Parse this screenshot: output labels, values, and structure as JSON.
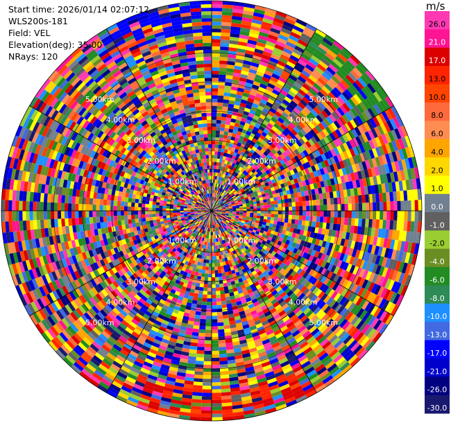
{
  "header": {
    "start_time": "Start time: 2026/01/14 02:07:12",
    "instrument": "WLS200s-181",
    "field": "Field: VEL",
    "elevation": "Elevation(deg): 35.00",
    "nrays": "NRays: 120"
  },
  "colorbar": {
    "unit": "m/s",
    "labels": [
      "26.0",
      "21.0",
      "17.0",
      "13.0",
      "10.0",
      "8.0",
      "6.0",
      "4.0",
      "2.0",
      "1.0",
      "0.0",
      "-1.0",
      "-2.0",
      "-4.0",
      "-6.0",
      "-8.0",
      "-10.0",
      "-13.0",
      "-17.0",
      "-21.0",
      "-26.0",
      "-30.0"
    ],
    "colors": [
      "#ff39b4",
      "#ff1493",
      "#dc0000",
      "#ff2400",
      "#ff4500",
      "#ff6a3c",
      "#ff8c50",
      "#ffa500",
      "#ffd700",
      "#ffff00",
      "#708090",
      "#606060",
      "#9acd32",
      "#6b8e23",
      "#228b22",
      "#2e8b57",
      "#1e90ff",
      "#4169e1",
      "#0000ff",
      "#0000cd",
      "#000080",
      "#191970"
    ]
  },
  "chart_data": {
    "type": "heatmap",
    "projection": "polar-ppi",
    "field": "VEL",
    "units": "m/s",
    "nrays": 120,
    "range_rings_km": [
      "1.00km",
      "2.00km",
      "3.00km",
      "4.00km",
      "5.00km"
    ],
    "max_range_km": 6.0,
    "colormap_levels": [
      -30,
      -26,
      -21,
      -17,
      -13,
      -10,
      -8,
      -6,
      -4,
      -2,
      -1,
      0,
      1,
      2,
      4,
      6,
      8,
      10,
      13,
      17,
      21,
      26
    ],
    "grid": true
  }
}
